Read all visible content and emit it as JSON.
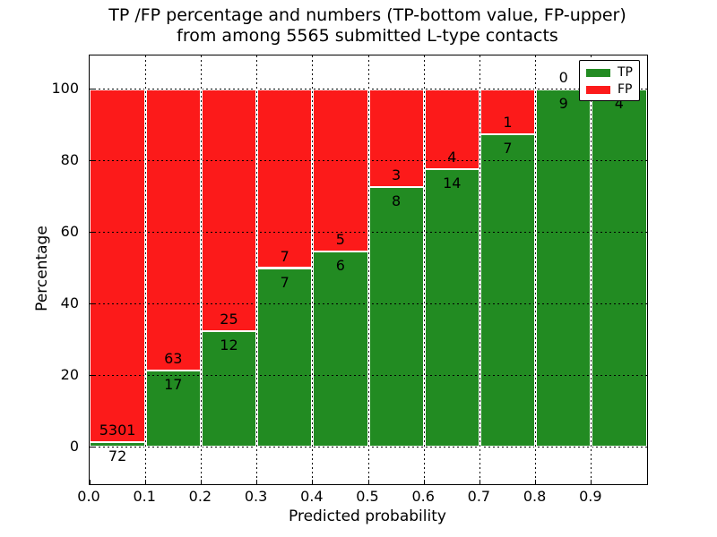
{
  "figure": {
    "title_line1": "TP /FP percentage and numbers (TP-bottom value, FP-upper)",
    "title_line2": "from among 5565 submitted L-type contacts",
    "background": "#ffffff"
  },
  "chart_data": {
    "type": "bar",
    "variant": "stacked-percentage",
    "title": "TP /FP percentage and numbers (TP-bottom value, FP-upper)\nfrom among 5565 submitted L-type contacts",
    "xlabel": "Predicted probability",
    "ylabel": "Percentage",
    "total_contacts": 5565,
    "categories": [
      "0.0-0.1",
      "0.1-0.2",
      "0.2-0.3",
      "0.3-0.4",
      "0.4-0.5",
      "0.5-0.6",
      "0.6-0.7",
      "0.7-0.8",
      "0.8-0.9",
      "0.9-1.0"
    ],
    "series": [
      {
        "name": "TP",
        "color": "#228b22",
        "counts": [
          72,
          17,
          12,
          7,
          6,
          8,
          14,
          7,
          9,
          4
        ]
      },
      {
        "name": "FP",
        "color": "#fc1a1a",
        "counts": [
          5301,
          63,
          25,
          7,
          5,
          3,
          4,
          1,
          0,
          0
        ]
      }
    ],
    "bar_label_note": "TP count printed below segment boundary, FP count printed above it",
    "xticks": [
      "0.0",
      "0.1",
      "0.2",
      "0.3",
      "0.4",
      "0.5",
      "0.6",
      "0.7",
      "0.8",
      "0.9"
    ],
    "yticks": [
      0,
      20,
      40,
      60,
      80,
      100
    ],
    "xlim": [
      0.0,
      1.0
    ],
    "ylim": [
      -10.5,
      109.5
    ],
    "grid": "dotted",
    "gridline_color": "#000000",
    "bar_edge_color": "#ffffff",
    "legend": {
      "position": "upper right",
      "entries": [
        {
          "label": "TP",
          "color": "#228b22"
        },
        {
          "label": "FP",
          "color": "#fc1a1a"
        }
      ]
    }
  }
}
